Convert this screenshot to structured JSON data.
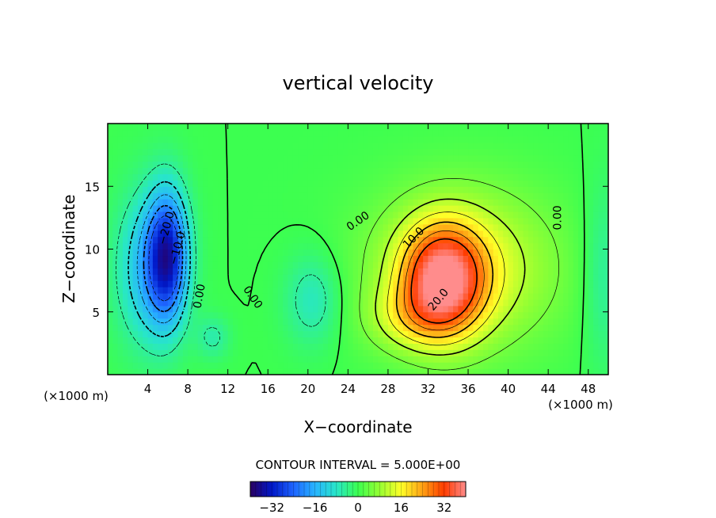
{
  "chart_data": {
    "type": "heatmap",
    "title": "vertical velocity",
    "xlabel": "X−coordinate",
    "ylabel": "Z−coordinate",
    "x_unit_label_left": "(×1000 m)",
    "x_unit_label_right": "(×1000 m)",
    "xlim": [
      0,
      50
    ],
    "ylim": [
      0,
      20
    ],
    "x_ticks": [
      4,
      8,
      12,
      16,
      20,
      24,
      28,
      32,
      36,
      40,
      44,
      48
    ],
    "y_ticks": [
      5,
      10,
      15
    ],
    "x_tick_labels": [
      "4",
      "8",
      "12",
      "16",
      "20",
      "24",
      "28",
      "32",
      "36",
      "40",
      "44",
      "48"
    ],
    "y_tick_labels": [
      "5",
      "10",
      "15"
    ],
    "contour_interval_text": "CONTOUR INTERVAL = 5.000E+00",
    "contour_labels": [
      "−10.0",
      "−20.0",
      "0.00",
      "0.00",
      "0.00",
      "0.00",
      "10.0",
      "20.0"
    ],
    "colorbar": {
      "min": -40,
      "max": 40,
      "ticks": [
        -32,
        -16,
        0,
        16,
        32
      ],
      "tick_labels": [
        "−32",
        "−16",
        "0",
        "16",
        "32"
      ]
    },
    "features": [
      {
        "sign": "updraft",
        "peak": 32,
        "x": 33.5,
        "z": 7.5,
        "sx": 2.8,
        "sz": 3.0
      },
      {
        "sign": "updraft",
        "peak": 15,
        "x": 35.5,
        "z": 8.5,
        "sx": 6.5,
        "sz": 4.5
      },
      {
        "sign": "updraft",
        "peak": 8,
        "x": 30.0,
        "z": 4.5,
        "sx": 3.0,
        "sz": 1.8
      },
      {
        "sign": "downdraft",
        "peak": -28,
        "x": 6.0,
        "z": 9.5,
        "sx": 1.4,
        "sz": 3.6
      },
      {
        "sign": "downdraft",
        "peak": -14,
        "x": 4.0,
        "z": 8.5,
        "sx": 2.2,
        "sz": 4.2
      },
      {
        "sign": "downdraft",
        "peak": -8,
        "x": 20.5,
        "z": 6.0,
        "sx": 2.0,
        "sz": 2.6
      },
      {
        "sign": "downdraft",
        "peak": -6,
        "x": 10.5,
        "z": 3.0,
        "sx": 1.2,
        "sz": 1.2
      },
      {
        "sign": "downdraft",
        "peak": -6,
        "x": 49.5,
        "z": 8.0,
        "sx": 1.5,
        "sz": 5.0
      }
    ],
    "grid": false,
    "colormap": [
      "#2a0060",
      "#0018c8",
      "#1e64ff",
      "#28b4ff",
      "#28e6c8",
      "#3cff50",
      "#96ff32",
      "#ffff28",
      "#ffa014",
      "#ff3c00",
      "#ff8c8c"
    ]
  }
}
